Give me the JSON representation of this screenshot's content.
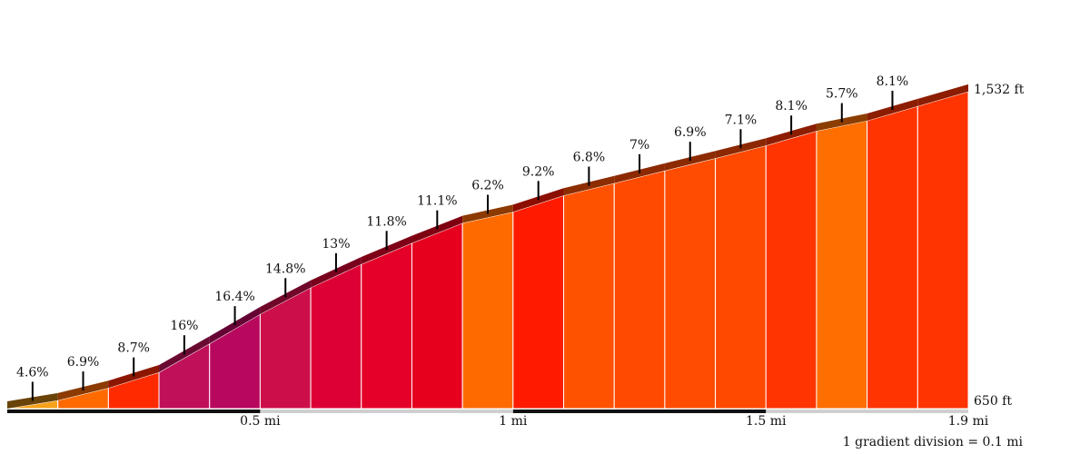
{
  "chart_data": {
    "type": "area",
    "title": "",
    "x_unit": "mi",
    "distance_total_mi": 1.9,
    "elevation_min_label": "650 ft",
    "elevation_max_label": "1,532 ft",
    "elevation_range_ft": [
      650,
      1532
    ],
    "x_tick_labels": [
      {
        "x": 0.5,
        "label": "0.5 mi"
      },
      {
        "x": 1.0,
        "label": "1 mi"
      },
      {
        "x": 1.5,
        "label": "1.5 mi"
      },
      {
        "x": 1.9,
        "label": "1.9 mi"
      }
    ],
    "footnote": "1 gradient division = 0.1 mi",
    "segments": [
      {
        "from_mi": 0.0,
        "to_mi": 0.1,
        "grade_pct": 4.6,
        "grade_label": "4.6%",
        "color": "#f7a21b"
      },
      {
        "from_mi": 0.1,
        "to_mi": 0.2,
        "grade_pct": 6.9,
        "grade_label": "6.9%",
        "color": "#ff6a00"
      },
      {
        "from_mi": 0.2,
        "to_mi": 0.3,
        "grade_pct": 8.7,
        "grade_label": "8.7%",
        "color": "#ff2a00"
      },
      {
        "from_mi": 0.3,
        "to_mi": 0.4,
        "grade_pct": 16,
        "grade_label": "16%",
        "color": "#c0105a"
      },
      {
        "from_mi": 0.4,
        "to_mi": 0.5,
        "grade_pct": 16.4,
        "grade_label": "16.4%",
        "color": "#b8085e"
      },
      {
        "from_mi": 0.5,
        "to_mi": 0.6,
        "grade_pct": 14.8,
        "grade_label": "14.8%",
        "color": "#cc0f4a"
      },
      {
        "from_mi": 0.6,
        "to_mi": 0.7,
        "grade_pct": 13,
        "grade_label": "13%",
        "color": "#dc0034"
      },
      {
        "from_mi": 0.7,
        "to_mi": 0.8,
        "grade_pct": 11.8,
        "grade_label": "11.8%",
        "color": "#e40028"
      },
      {
        "from_mi": 0.8,
        "to_mi": 0.9,
        "grade_pct": 11.1,
        "grade_label": "11.1%",
        "color": "#e6001e"
      },
      {
        "from_mi": 0.9,
        "to_mi": 1.0,
        "grade_pct": 6.2,
        "grade_label": "6.2%",
        "color": "#ff6a00"
      },
      {
        "from_mi": 1.0,
        "to_mi": 1.1,
        "grade_pct": 9.2,
        "grade_label": "9.2%",
        "color": "#ff1a00"
      },
      {
        "from_mi": 1.1,
        "to_mi": 1.2,
        "grade_pct": 6.8,
        "grade_label": "6.8%",
        "color": "#ff5200"
      },
      {
        "from_mi": 1.2,
        "to_mi": 1.3,
        "grade_pct": 7,
        "grade_label": "7%",
        "color": "#ff4a00"
      },
      {
        "from_mi": 1.3,
        "to_mi": 1.4,
        "grade_pct": 6.9,
        "grade_label": "6.9%",
        "color": "#ff4c00"
      },
      {
        "from_mi": 1.4,
        "to_mi": 1.5,
        "grade_pct": 7.1,
        "grade_label": "7.1%",
        "color": "#ff4800"
      },
      {
        "from_mi": 1.5,
        "to_mi": 1.6,
        "grade_pct": 8.1,
        "grade_label": "8.1%",
        "color": "#ff3400"
      },
      {
        "from_mi": 1.6,
        "to_mi": 1.7,
        "grade_pct": 5.7,
        "grade_label": "5.7%",
        "color": "#ff6e00"
      },
      {
        "from_mi": 1.7,
        "to_mi": 1.8,
        "grade_pct": 8.1,
        "grade_label": "8.1%",
        "color": "#ff3400"
      }
    ],
    "grid": false,
    "legend": "none"
  }
}
